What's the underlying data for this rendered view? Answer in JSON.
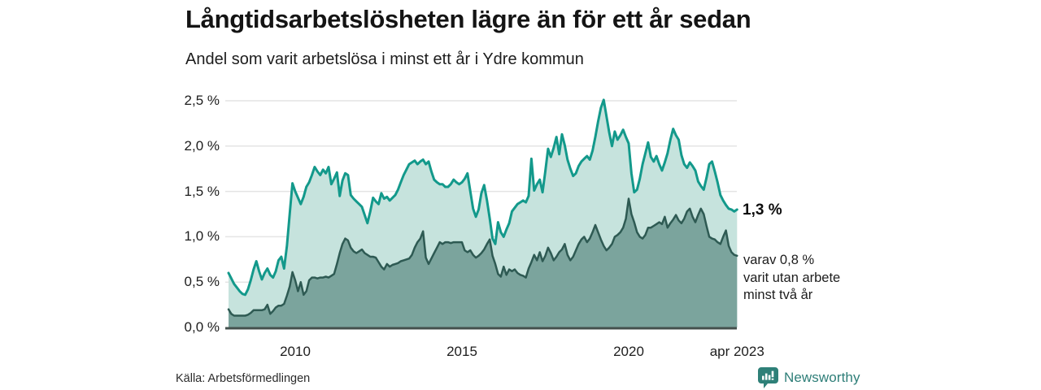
{
  "header": {
    "title": "Långtidsarbetslösheten lägre än för ett år sedan",
    "subtitle": "Andel som varit arbetslösa i minst ett år i Ydre kommun"
  },
  "chart_data": {
    "type": "area",
    "title": "Andel som varit arbetslösa i minst ett år i Ydre kommun",
    "unit": "%",
    "grid": true,
    "ylim": [
      0,
      2.5
    ],
    "y_tick_values": [
      0,
      0.5,
      1.0,
      1.5,
      2.0,
      2.5
    ],
    "y_tick_labels": [
      "0,0 %",
      "0,5 %",
      "1,0 %",
      "1,5 %",
      "2,0 %",
      "2,5 %"
    ],
    "x_ticks": [
      {
        "label": "2010",
        "year": 2010
      },
      {
        "label": "2015",
        "year": 2015
      },
      {
        "label": "2020",
        "year": 2020
      },
      {
        "label": "apr 2023",
        "year": 2023.25
      }
    ],
    "x_start_year": 2008,
    "x_months": 184,
    "series": [
      {
        "name": "Arbetslösa minst ett år",
        "line_color": "#13998b",
        "fill_color": "#c6e3dd",
        "line_width": 3,
        "values": [
          0.6,
          0.54,
          0.48,
          0.44,
          0.4,
          0.37,
          0.36,
          0.42,
          0.52,
          0.64,
          0.73,
          0.62,
          0.53,
          0.6,
          0.65,
          0.58,
          0.55,
          0.62,
          0.74,
          0.78,
          0.65,
          0.9,
          1.25,
          1.59,
          1.5,
          1.43,
          1.36,
          1.44,
          1.55,
          1.6,
          1.68,
          1.77,
          1.72,
          1.68,
          1.74,
          1.7,
          1.77,
          1.58,
          1.64,
          1.71,
          1.45,
          1.62,
          1.7,
          1.68,
          1.46,
          1.42,
          1.39,
          1.36,
          1.33,
          1.24,
          1.15,
          1.28,
          1.43,
          1.39,
          1.36,
          1.48,
          1.42,
          1.44,
          1.4,
          1.43,
          1.46,
          1.52,
          1.6,
          1.68,
          1.74,
          1.8,
          1.82,
          1.84,
          1.8,
          1.83,
          1.85,
          1.8,
          1.83,
          1.72,
          1.63,
          1.6,
          1.58,
          1.58,
          1.55,
          1.55,
          1.58,
          1.63,
          1.6,
          1.58,
          1.6,
          1.64,
          1.7,
          1.5,
          1.31,
          1.22,
          1.3,
          1.48,
          1.57,
          1.4,
          1.2,
          0.98,
          0.92,
          1.16,
          1.05,
          1.0,
          1.08,
          1.15,
          1.28,
          1.32,
          1.36,
          1.38,
          1.4,
          1.38,
          1.45,
          1.86,
          1.51,
          1.58,
          1.63,
          1.49,
          1.72,
          1.97,
          1.88,
          1.98,
          2.1,
          1.91,
          2.13,
          2.01,
          1.85,
          1.75,
          1.67,
          1.7,
          1.78,
          1.83,
          1.86,
          1.89,
          1.85,
          1.95,
          2.1,
          2.27,
          2.42,
          2.51,
          2.33,
          2.15,
          2.0,
          2.16,
          2.07,
          2.12,
          2.18,
          2.1,
          2.03,
          1.7,
          1.49,
          1.52,
          1.64,
          1.8,
          1.92,
          2.04,
          1.88,
          1.83,
          1.89,
          1.8,
          1.73,
          1.82,
          1.92,
          2.07,
          2.19,
          2.12,
          2.07,
          1.9,
          1.8,
          1.76,
          1.82,
          1.78,
          1.73,
          1.61,
          1.56,
          1.52,
          1.65,
          1.8,
          1.83,
          1.72,
          1.6,
          1.46,
          1.4,
          1.35,
          1.31,
          1.3,
          1.28,
          1.3
        ]
      },
      {
        "name": "Arbetslösa minst två år",
        "line_color": "#2e5a53",
        "fill_color": "#7ba49d",
        "line_width": 2.5,
        "values": [
          0.2,
          0.15,
          0.13,
          0.13,
          0.13,
          0.13,
          0.13,
          0.14,
          0.16,
          0.19,
          0.19,
          0.19,
          0.19,
          0.2,
          0.25,
          0.15,
          0.18,
          0.22,
          0.24,
          0.24,
          0.26,
          0.35,
          0.45,
          0.61,
          0.52,
          0.4,
          0.5,
          0.36,
          0.4,
          0.52,
          0.55,
          0.55,
          0.54,
          0.55,
          0.55,
          0.56,
          0.55,
          0.57,
          0.59,
          0.7,
          0.82,
          0.92,
          0.98,
          0.96,
          0.88,
          0.84,
          0.82,
          0.84,
          0.86,
          0.82,
          0.8,
          0.78,
          0.78,
          0.77,
          0.72,
          0.67,
          0.64,
          0.7,
          0.67,
          0.69,
          0.7,
          0.71,
          0.73,
          0.74,
          0.75,
          0.76,
          0.8,
          0.88,
          0.94,
          0.98,
          1.06,
          0.77,
          0.7,
          0.76,
          0.82,
          0.88,
          0.94,
          0.92,
          0.94,
          0.94,
          0.93,
          0.94,
          0.94,
          0.94,
          0.94,
          0.85,
          0.83,
          0.85,
          0.8,
          0.77,
          0.79,
          0.82,
          0.86,
          0.92,
          0.97,
          0.79,
          0.7,
          0.59,
          0.56,
          0.67,
          0.58,
          0.64,
          0.62,
          0.64,
          0.6,
          0.58,
          0.57,
          0.55,
          0.65,
          0.72,
          0.8,
          0.74,
          0.83,
          0.73,
          0.79,
          0.88,
          0.82,
          0.74,
          0.78,
          0.83,
          0.86,
          0.92,
          0.8,
          0.74,
          0.78,
          0.85,
          0.92,
          0.97,
          1.0,
          0.94,
          0.98,
          1.05,
          1.13,
          1.05,
          0.97,
          0.9,
          0.85,
          0.88,
          0.92,
          1.0,
          1.02,
          1.05,
          1.1,
          1.2,
          1.42,
          1.25,
          1.16,
          1.05,
          1.0,
          0.98,
          1.02,
          1.1,
          1.1,
          1.12,
          1.14,
          1.16,
          1.14,
          1.22,
          1.1,
          1.15,
          1.19,
          1.24,
          1.18,
          1.15,
          1.2,
          1.28,
          1.31,
          1.22,
          1.16,
          1.24,
          1.31,
          1.25,
          1.12,
          1.0,
          0.98,
          0.97,
          0.94,
          0.92,
          1.0,
          1.07,
          0.9,
          0.83,
          0.8,
          0.79
        ]
      }
    ],
    "colors": {
      "grid": "#e4e4e4",
      "zero_axis": "#44504d"
    }
  },
  "annotations": {
    "latest_value": "1,3 %",
    "sub_lines": [
      "varav 0,8 %",
      "varit utan arbete",
      "minst två år"
    ]
  },
  "footer": {
    "source": "Källa: Arbetsförmedlingen",
    "logo_text": "Newsworthy",
    "logo_color": "#2e8078"
  }
}
